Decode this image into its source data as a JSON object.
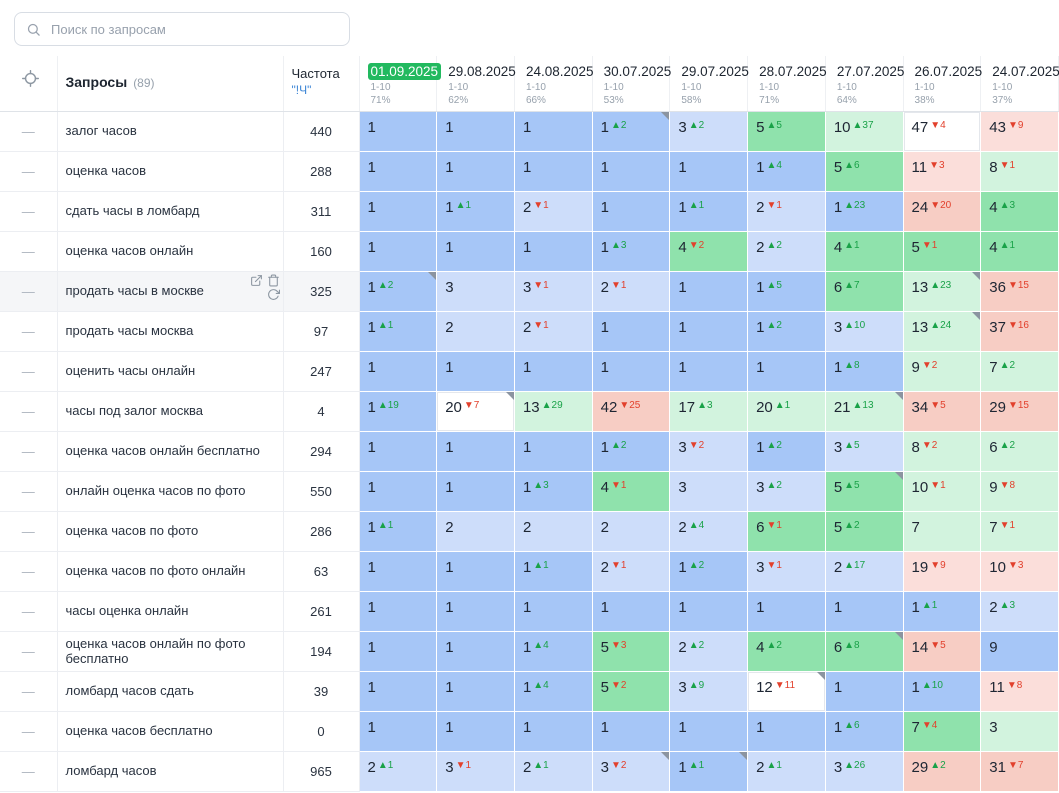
{
  "search": {
    "placeholder": "Поиск по запросам"
  },
  "colors": {
    "selected_date_bg": "#22b95f",
    "delta_up": "#19a248",
    "delta_down": "#e2402c",
    "cell_palette": {
      "b1": "#a6c6f7",
      "b2": "#cdddfa",
      "g1": "#8fe2ac",
      "g2": "#d2f3de",
      "r1": "#fbdeda",
      "r2": "#f7cdc4",
      "w": "#ffffff"
    }
  },
  "icons": [
    "search-icon",
    "crosshair-icon",
    "external-link-icon",
    "trash-icon",
    "refresh-icon"
  ],
  "table": {
    "queries_label": "Запросы",
    "queries_count": "(89)",
    "frequency_label": "Частота",
    "frequency_sub": "\"!Ч\"",
    "dates": [
      {
        "label": "01.09.2025",
        "selected": true,
        "range": "1-10",
        "percent": "71%"
      },
      {
        "label": "29.08.2025",
        "range": "1-10",
        "percent": "62%"
      },
      {
        "label": "24.08.2025",
        "range": "1-10",
        "percent": "66%"
      },
      {
        "label": "30.07.2025",
        "range": "1-10",
        "percent": "53%"
      },
      {
        "label": "29.07.2025",
        "range": "1-10",
        "percent": "58%"
      },
      {
        "label": "28.07.2025",
        "range": "1-10",
        "percent": "71%"
      },
      {
        "label": "27.07.2025",
        "range": "1-10",
        "percent": "64%"
      },
      {
        "label": "26.07.2025",
        "range": "1-10",
        "percent": "38%"
      },
      {
        "label": "24.07.2025",
        "range": "1-10",
        "percent": "37%"
      }
    ],
    "rows": [
      {
        "query": "залог часов",
        "freq": "440",
        "cells": [
          {
            "v": "1",
            "bg": "b1"
          },
          {
            "v": "1",
            "bg": "b1"
          },
          {
            "v": "1",
            "bg": "b1"
          },
          {
            "v": "1",
            "d": "2",
            "dir": "up",
            "bg": "b1",
            "flag": true
          },
          {
            "v": "3",
            "d": "2",
            "dir": "up",
            "bg": "b2"
          },
          {
            "v": "5",
            "d": "5",
            "dir": "up",
            "bg": "g1"
          },
          {
            "v": "10",
            "d": "37",
            "dir": "up",
            "bg": "g2"
          },
          {
            "v": "47",
            "d": "4",
            "dir": "down",
            "bg": "w"
          },
          {
            "v": "43",
            "d": "9",
            "dir": "down",
            "bg": "r1"
          }
        ]
      },
      {
        "query": "оценка часов",
        "freq": "288",
        "cells": [
          {
            "v": "1",
            "bg": "b1"
          },
          {
            "v": "1",
            "bg": "b1"
          },
          {
            "v": "1",
            "bg": "b1"
          },
          {
            "v": "1",
            "bg": "b1"
          },
          {
            "v": "1",
            "bg": "b1"
          },
          {
            "v": "1",
            "d": "4",
            "dir": "up",
            "bg": "b1"
          },
          {
            "v": "5",
            "d": "6",
            "dir": "up",
            "bg": "g1"
          },
          {
            "v": "11",
            "d": "3",
            "dir": "down",
            "bg": "r1"
          },
          {
            "v": "8",
            "d": "1",
            "dir": "down",
            "bg": "g2"
          }
        ]
      },
      {
        "query": "сдать часы в ломбард",
        "freq": "311",
        "cells": [
          {
            "v": "1",
            "bg": "b1"
          },
          {
            "v": "1",
            "d": "1",
            "dir": "up",
            "bg": "b1"
          },
          {
            "v": "2",
            "d": "1",
            "dir": "down",
            "bg": "b2"
          },
          {
            "v": "1",
            "bg": "b1"
          },
          {
            "v": "1",
            "d": "1",
            "dir": "up",
            "bg": "b1"
          },
          {
            "v": "2",
            "d": "1",
            "dir": "down",
            "bg": "b2"
          },
          {
            "v": "1",
            "d": "23",
            "dir": "up",
            "bg": "b1"
          },
          {
            "v": "24",
            "d": "20",
            "dir": "down",
            "bg": "r2"
          },
          {
            "v": "4",
            "d": "3",
            "dir": "up",
            "bg": "g1"
          }
        ]
      },
      {
        "query": "оценка часов онлайн",
        "freq": "160",
        "cells": [
          {
            "v": "1",
            "bg": "b1"
          },
          {
            "v": "1",
            "bg": "b1"
          },
          {
            "v": "1",
            "bg": "b1"
          },
          {
            "v": "1",
            "d": "3",
            "dir": "up",
            "bg": "b1"
          },
          {
            "v": "4",
            "d": "2",
            "dir": "down",
            "bg": "g1"
          },
          {
            "v": "2",
            "d": "2",
            "dir": "up",
            "bg": "b2"
          },
          {
            "v": "4",
            "d": "1",
            "dir": "up",
            "bg": "g1"
          },
          {
            "v": "5",
            "d": "1",
            "dir": "down",
            "bg": "g1"
          },
          {
            "v": "4",
            "d": "1",
            "dir": "up",
            "bg": "g1"
          }
        ]
      },
      {
        "query": "продать часы в москве",
        "freq": "325",
        "hover": true,
        "cells": [
          {
            "v": "1",
            "d": "2",
            "dir": "up",
            "bg": "b1",
            "flag": true
          },
          {
            "v": "3",
            "bg": "b2"
          },
          {
            "v": "3",
            "d": "1",
            "dir": "down",
            "bg": "b2"
          },
          {
            "v": "2",
            "d": "1",
            "dir": "down",
            "bg": "b2"
          },
          {
            "v": "1",
            "bg": "b1"
          },
          {
            "v": "1",
            "d": "5",
            "dir": "up",
            "bg": "b1"
          },
          {
            "v": "6",
            "d": "7",
            "dir": "up",
            "bg": "g1"
          },
          {
            "v": "13",
            "d": "23",
            "dir": "up",
            "bg": "g2",
            "flag": true
          },
          {
            "v": "36",
            "d": "15",
            "dir": "down",
            "bg": "r2"
          }
        ]
      },
      {
        "query": "продать часы москва",
        "freq": "97",
        "cells": [
          {
            "v": "1",
            "d": "1",
            "dir": "up",
            "bg": "b1"
          },
          {
            "v": "2",
            "bg": "b2"
          },
          {
            "v": "2",
            "d": "1",
            "dir": "down",
            "bg": "b2"
          },
          {
            "v": "1",
            "bg": "b1"
          },
          {
            "v": "1",
            "bg": "b1"
          },
          {
            "v": "1",
            "d": "2",
            "dir": "up",
            "bg": "b1"
          },
          {
            "v": "3",
            "d": "10",
            "dir": "up",
            "bg": "b2"
          },
          {
            "v": "13",
            "d": "24",
            "dir": "up",
            "bg": "g2",
            "flag": true
          },
          {
            "v": "37",
            "d": "16",
            "dir": "down",
            "bg": "r2"
          }
        ]
      },
      {
        "query": "оценить часы онлайн",
        "freq": "247",
        "cells": [
          {
            "v": "1",
            "bg": "b1"
          },
          {
            "v": "1",
            "bg": "b1"
          },
          {
            "v": "1",
            "bg": "b1"
          },
          {
            "v": "1",
            "bg": "b1"
          },
          {
            "v": "1",
            "bg": "b1"
          },
          {
            "v": "1",
            "bg": "b1"
          },
          {
            "v": "1",
            "d": "8",
            "dir": "up",
            "bg": "b1"
          },
          {
            "v": "9",
            "d": "2",
            "dir": "down",
            "bg": "g2"
          },
          {
            "v": "7",
            "d": "2",
            "dir": "up",
            "bg": "g2"
          }
        ]
      },
      {
        "query": "часы под залог москва",
        "freq": "4",
        "cells": [
          {
            "v": "1",
            "d": "19",
            "dir": "up",
            "bg": "b1"
          },
          {
            "v": "20",
            "d": "7",
            "dir": "down",
            "bg": "w",
            "flag": true
          },
          {
            "v": "13",
            "d": "29",
            "dir": "up",
            "bg": "g2"
          },
          {
            "v": "42",
            "d": "25",
            "dir": "down",
            "bg": "r2"
          },
          {
            "v": "17",
            "d": "3",
            "dir": "up",
            "bg": "g2"
          },
          {
            "v": "20",
            "d": "1",
            "dir": "up",
            "bg": "g2"
          },
          {
            "v": "21",
            "d": "13",
            "dir": "up",
            "bg": "g2",
            "flag": true
          },
          {
            "v": "34",
            "d": "5",
            "dir": "down",
            "bg": "r2"
          },
          {
            "v": "29",
            "d": "15",
            "dir": "down",
            "bg": "r2"
          }
        ]
      },
      {
        "query": "оценка часов онлайн бесплатно",
        "freq": "294",
        "cells": [
          {
            "v": "1",
            "bg": "b1"
          },
          {
            "v": "1",
            "bg": "b1"
          },
          {
            "v": "1",
            "bg": "b1"
          },
          {
            "v": "1",
            "d": "2",
            "dir": "up",
            "bg": "b1"
          },
          {
            "v": "3",
            "d": "2",
            "dir": "down",
            "bg": "b2"
          },
          {
            "v": "1",
            "d": "2",
            "dir": "up",
            "bg": "b1"
          },
          {
            "v": "3",
            "d": "5",
            "dir": "up",
            "bg": "b2"
          },
          {
            "v": "8",
            "d": "2",
            "dir": "down",
            "bg": "g2"
          },
          {
            "v": "6",
            "d": "2",
            "dir": "up",
            "bg": "g2"
          }
        ]
      },
      {
        "query": "онлайн оценка часов по фото",
        "freq": "550",
        "cells": [
          {
            "v": "1",
            "bg": "b1"
          },
          {
            "v": "1",
            "bg": "b1"
          },
          {
            "v": "1",
            "d": "3",
            "dir": "up",
            "bg": "b1"
          },
          {
            "v": "4",
            "d": "1",
            "dir": "down",
            "bg": "g1"
          },
          {
            "v": "3",
            "bg": "b2"
          },
          {
            "v": "3",
            "d": "2",
            "dir": "up",
            "bg": "b2"
          },
          {
            "v": "5",
            "d": "5",
            "dir": "up",
            "bg": "g1",
            "flag": true
          },
          {
            "v": "10",
            "d": "1",
            "dir": "down",
            "bg": "g2"
          },
          {
            "v": "9",
            "d": "8",
            "dir": "down",
            "bg": "g2"
          }
        ]
      },
      {
        "query": "оценка часов по фото",
        "freq": "286",
        "cells": [
          {
            "v": "1",
            "d": "1",
            "dir": "up",
            "bg": "b1"
          },
          {
            "v": "2",
            "bg": "b2"
          },
          {
            "v": "2",
            "bg": "b2"
          },
          {
            "v": "2",
            "bg": "b2"
          },
          {
            "v": "2",
            "d": "4",
            "dir": "up",
            "bg": "b2"
          },
          {
            "v": "6",
            "d": "1",
            "dir": "down",
            "bg": "g1"
          },
          {
            "v": "5",
            "d": "2",
            "dir": "up",
            "bg": "g1"
          },
          {
            "v": "7",
            "bg": "g2"
          },
          {
            "v": "7",
            "d": "1",
            "dir": "down",
            "bg": "g2"
          }
        ]
      },
      {
        "query": "оценка часов по фото онлайн",
        "freq": "63",
        "cells": [
          {
            "v": "1",
            "bg": "b1"
          },
          {
            "v": "1",
            "bg": "b1"
          },
          {
            "v": "1",
            "d": "1",
            "dir": "up",
            "bg": "b1"
          },
          {
            "v": "2",
            "d": "1",
            "dir": "down",
            "bg": "b2"
          },
          {
            "v": "1",
            "d": "2",
            "dir": "up",
            "bg": "b1"
          },
          {
            "v": "3",
            "d": "1",
            "dir": "down",
            "bg": "b2"
          },
          {
            "v": "2",
            "d": "17",
            "dir": "up",
            "bg": "b2"
          },
          {
            "v": "19",
            "d": "9",
            "dir": "down",
            "bg": "r1"
          },
          {
            "v": "10",
            "d": "3",
            "dir": "down",
            "bg": "r1"
          }
        ]
      },
      {
        "query": "часы оценка онлайн",
        "freq": "261",
        "cells": [
          {
            "v": "1",
            "bg": "b1"
          },
          {
            "v": "1",
            "bg": "b1"
          },
          {
            "v": "1",
            "bg": "b1"
          },
          {
            "v": "1",
            "bg": "b1"
          },
          {
            "v": "1",
            "bg": "b1"
          },
          {
            "v": "1",
            "bg": "b1"
          },
          {
            "v": "1",
            "bg": "b1"
          },
          {
            "v": "1",
            "d": "1",
            "dir": "up",
            "bg": "b1"
          },
          {
            "v": "2",
            "d": "3",
            "dir": "up",
            "bg": "b2"
          }
        ]
      },
      {
        "query": "оценка часов онлайн по фото бесплатно",
        "freq": "194",
        "cells": [
          {
            "v": "1",
            "bg": "b1"
          },
          {
            "v": "1",
            "bg": "b1"
          },
          {
            "v": "1",
            "d": "4",
            "dir": "up",
            "bg": "b1"
          },
          {
            "v": "5",
            "d": "3",
            "dir": "down",
            "bg": "g1"
          },
          {
            "v": "2",
            "d": "2",
            "dir": "up",
            "bg": "b2"
          },
          {
            "v": "4",
            "d": "2",
            "dir": "up",
            "bg": "g1"
          },
          {
            "v": "6",
            "d": "8",
            "dir": "up",
            "bg": "g1",
            "flag": true
          },
          {
            "v": "14",
            "d": "5",
            "dir": "down",
            "bg": "r2"
          },
          {
            "v": "9",
            "bg": "b1"
          }
        ]
      },
      {
        "query": "ломбард часов сдать",
        "freq": "39",
        "cells": [
          {
            "v": "1",
            "bg": "b1"
          },
          {
            "v": "1",
            "bg": "b1"
          },
          {
            "v": "1",
            "d": "4",
            "dir": "up",
            "bg": "b1"
          },
          {
            "v": "5",
            "d": "2",
            "dir": "down",
            "bg": "g1"
          },
          {
            "v": "3",
            "d": "9",
            "dir": "up",
            "bg": "b2"
          },
          {
            "v": "12",
            "d": "11",
            "dir": "down",
            "bg": "w",
            "flag": true
          },
          {
            "v": "1",
            "bg": "b1"
          },
          {
            "v": "1",
            "d": "10",
            "dir": "up",
            "bg": "b1"
          },
          {
            "v": "11",
            "d": "8",
            "dir": "down",
            "bg": "r1"
          }
        ]
      },
      {
        "query": "оценка часов бесплатно",
        "freq": "0",
        "cells": [
          {
            "v": "1",
            "bg": "b1"
          },
          {
            "v": "1",
            "bg": "b1"
          },
          {
            "v": "1",
            "bg": "b1"
          },
          {
            "v": "1",
            "bg": "b1"
          },
          {
            "v": "1",
            "bg": "b1"
          },
          {
            "v": "1",
            "bg": "b1"
          },
          {
            "v": "1",
            "d": "6",
            "dir": "up",
            "bg": "b1"
          },
          {
            "v": "7",
            "d": "4",
            "dir": "down",
            "bg": "g1"
          },
          {
            "v": "3",
            "bg": "g2"
          }
        ]
      },
      {
        "query": "ломбард часов",
        "freq": "965",
        "cells": [
          {
            "v": "2",
            "d": "1",
            "dir": "up",
            "bg": "b2"
          },
          {
            "v": "3",
            "d": "1",
            "dir": "down",
            "bg": "b2"
          },
          {
            "v": "2",
            "d": "1",
            "dir": "up",
            "bg": "b2"
          },
          {
            "v": "3",
            "d": "2",
            "dir": "down",
            "bg": "b2",
            "flag": true
          },
          {
            "v": "1",
            "d": "1",
            "dir": "up",
            "bg": "b1",
            "flag": true
          },
          {
            "v": "2",
            "d": "1",
            "dir": "up",
            "bg": "b2"
          },
          {
            "v": "3",
            "d": "26",
            "dir": "up",
            "bg": "b2"
          },
          {
            "v": "29",
            "d": "2",
            "dir": "up",
            "bg": "r2"
          },
          {
            "v": "31",
            "d": "7",
            "dir": "down",
            "bg": "r2"
          }
        ]
      }
    ]
  }
}
